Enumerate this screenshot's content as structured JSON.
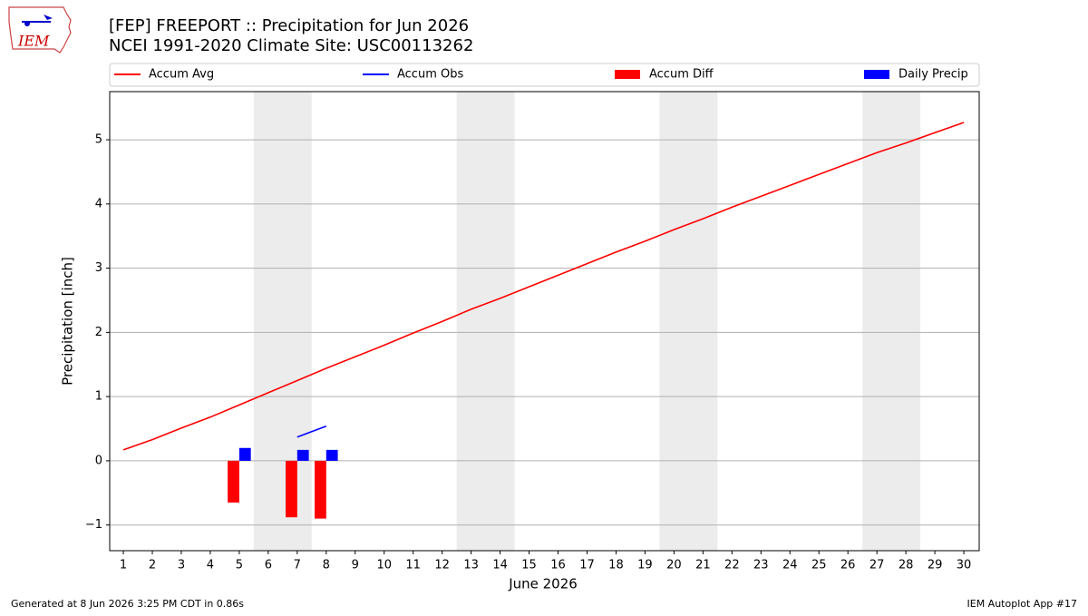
{
  "logo_text": "IEM",
  "footer_left": "Generated at 8 Jun 2026 3:25 PM CDT in 0.86s",
  "footer_right": "IEM Autoplot App #17",
  "chart_data": {
    "type": "line",
    "title": "[FEP] FREEPORT :: Precipitation for Jun 2026",
    "subtitle": "NCEI 1991-2020 Climate Site: USC00113262",
    "x_label": "June 2026",
    "y_label": "Precipitation [inch]",
    "x": [
      1,
      2,
      3,
      4,
      5,
      6,
      7,
      8,
      9,
      10,
      11,
      12,
      13,
      14,
      15,
      16,
      17,
      18,
      19,
      20,
      21,
      22,
      23,
      24,
      25,
      26,
      27,
      28,
      29,
      30
    ],
    "xlim": [
      0.53,
      30.53
    ],
    "xticks": [
      1,
      2,
      3,
      4,
      5,
      6,
      7,
      8,
      9,
      10,
      11,
      12,
      13,
      14,
      15,
      16,
      17,
      18,
      19,
      20,
      21,
      22,
      23,
      24,
      25,
      26,
      27,
      28,
      29,
      30
    ],
    "ylim": [
      -1.4,
      5.75
    ],
    "yticks": [
      {
        "value": -1,
        "label": "−1"
      },
      0,
      1,
      2,
      3,
      4,
      5
    ],
    "grid": true,
    "shaded_spans": [
      [
        5.5,
        7.5
      ],
      [
        12.5,
        14.5
      ],
      [
        19.5,
        21.5
      ],
      [
        26.5,
        28.5
      ]
    ],
    "series": [
      {
        "name": "Accum Avg",
        "type": "line",
        "color": "#ff0000",
        "values": [
          0.17,
          0.33,
          0.51,
          0.68,
          0.87,
          1.06,
          1.25,
          1.44,
          1.62,
          1.8,
          1.99,
          2.17,
          2.36,
          2.53,
          2.71,
          2.89,
          3.07,
          3.25,
          3.42,
          3.6,
          3.77,
          3.95,
          4.12,
          4.29,
          4.46,
          4.63,
          4.8,
          4.95,
          5.11,
          5.27
        ]
      },
      {
        "name": "Accum Obs",
        "type": "line",
        "color": "#0000ff",
        "values": [
          null,
          null,
          null,
          null,
          null,
          null,
          0.37,
          0.54,
          null,
          null,
          null,
          null,
          null,
          null,
          null,
          null,
          null,
          null,
          null,
          null,
          null,
          null,
          null,
          null,
          null,
          null,
          null,
          null,
          null,
          null
        ]
      },
      {
        "name": "Accum Diff",
        "type": "bar",
        "color": "#ff0000",
        "values": [
          null,
          null,
          null,
          null,
          -0.65,
          null,
          -0.88,
          -0.9,
          null,
          null,
          null,
          null,
          null,
          null,
          null,
          null,
          null,
          null,
          null,
          null,
          null,
          null,
          null,
          null,
          null,
          null,
          null,
          null,
          null,
          null
        ]
      },
      {
        "name": "Daily Precip",
        "type": "bar",
        "color": "#0000ff",
        "values": [
          null,
          null,
          null,
          null,
          0.2,
          null,
          0.17,
          0.17,
          null,
          null,
          null,
          null,
          null,
          null,
          null,
          null,
          null,
          null,
          null,
          null,
          null,
          null,
          null,
          null,
          null,
          null,
          null,
          null,
          null,
          null
        ]
      }
    ]
  }
}
